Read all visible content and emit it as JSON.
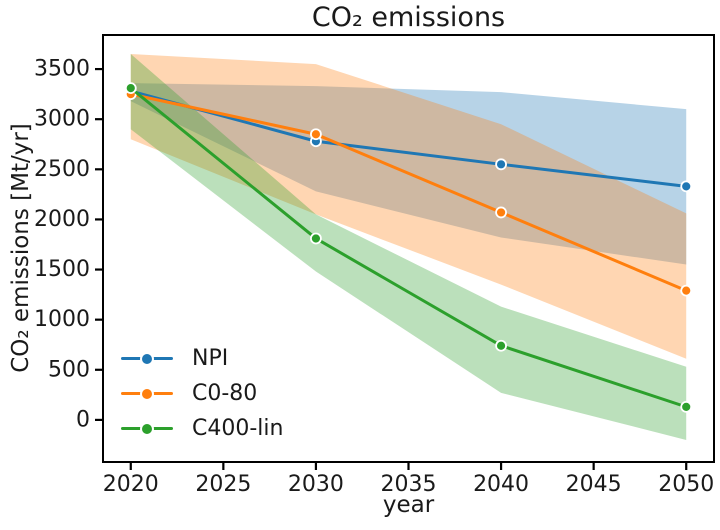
{
  "figure": {
    "title": "CO₂ emissions",
    "xlabel": "year",
    "ylabel": "CO₂ emissions [Mt/yr]"
  },
  "chart_data": {
    "type": "line",
    "title": "CO₂ emissions",
    "xlabel": "year",
    "ylabel": "CO₂ emissions [Mt/yr]",
    "x": [
      2020,
      2030,
      2040,
      2050
    ],
    "x_ticks": [
      2020,
      2025,
      2030,
      2035,
      2040,
      2045,
      2050
    ],
    "y_ticks": [
      0,
      500,
      1000,
      1500,
      2000,
      2500,
      3000,
      3500
    ],
    "xlim": [
      2018.5,
      2051.5
    ],
    "ylim": [
      -420,
      3840
    ],
    "grid": false,
    "legend_position": "lower left",
    "band_alpha": 0.32,
    "series": [
      {
        "name": "NPI",
        "color": "#1f77b4",
        "values": [
          3280,
          2780,
          2550,
          2330
        ],
        "band_low": [
          3180,
          2280,
          1820,
          1550
        ],
        "band_high": [
          3360,
          3330,
          3270,
          3100
        ]
      },
      {
        "name": "C0-80",
        "color": "#ff7f0e",
        "values": [
          3250,
          2850,
          2070,
          1290
        ],
        "band_low": [
          2800,
          2050,
          1350,
          610
        ],
        "band_high": [
          3650,
          3550,
          2950,
          2060
        ]
      },
      {
        "name": "C400-lin",
        "color": "#2ca02c",
        "values": [
          3310,
          1810,
          740,
          130
        ],
        "band_low": [
          2900,
          1480,
          270,
          -200
        ],
        "band_high": [
          3650,
          2050,
          1130,
          530
        ]
      }
    ]
  }
}
